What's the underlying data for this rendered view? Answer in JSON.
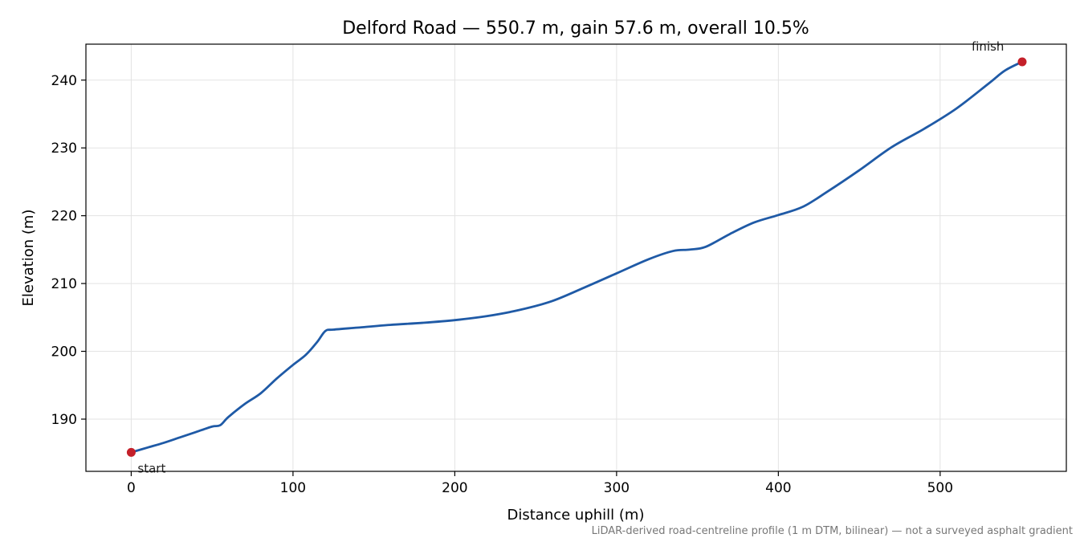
{
  "chart_data": {
    "type": "line",
    "title": "Delford Road — 550.7 m, gain 57.6 m, overall 10.5%",
    "xlabel": "Distance uphill (m)",
    "ylabel": "Elevation (m)",
    "xlim": [
      -28,
      578
    ],
    "ylim": [
      182.3,
      245.3
    ],
    "xticks": [
      0,
      100,
      200,
      300,
      400,
      500
    ],
    "yticks": [
      190,
      200,
      210,
      220,
      230,
      240
    ],
    "grid": true,
    "series": [
      {
        "color": "#1f5aa6",
        "x": [
          0,
          10,
          20,
          30,
          40,
          50,
          55,
          60,
          70,
          80,
          90,
          100,
          108,
          115,
          120,
          125,
          140,
          160,
          180,
          200,
          220,
          240,
          260,
          280,
          300,
          320,
          335,
          345,
          355,
          370,
          385,
          400,
          415,
          430,
          450,
          470,
          490,
          510,
          530,
          540,
          550.7
        ],
        "y": [
          185.1,
          185.8,
          186.5,
          187.3,
          188.1,
          188.9,
          189.1,
          190.3,
          192.2,
          193.8,
          196.0,
          198.0,
          199.5,
          201.4,
          203.0,
          203.2,
          203.5,
          203.9,
          204.2,
          204.6,
          205.2,
          206.1,
          207.4,
          209.4,
          211.5,
          213.6,
          214.8,
          215.0,
          215.4,
          217.3,
          219.0,
          220.1,
          221.3,
          223.5,
          226.7,
          230.1,
          232.8,
          235.8,
          239.5,
          241.4,
          242.7
        ]
      }
    ],
    "markers": [
      {
        "x": 0,
        "y": 185.1,
        "label": "start",
        "color": "#c4202a"
      },
      {
        "x": 550.7,
        "y": 242.7,
        "label": "finish",
        "color": "#c4202a"
      }
    ],
    "footnote": "LiDAR-derived road-centreline profile (1 m DTM, bilinear) — not a surveyed asphalt gradient"
  }
}
